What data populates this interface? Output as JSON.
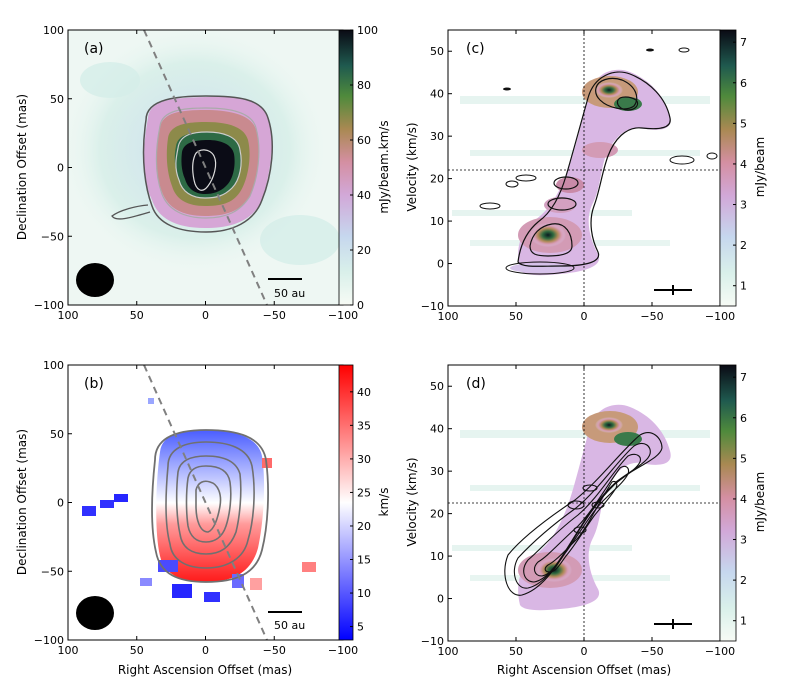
{
  "figure": {
    "caption_ra": "Right Ascension Offset (mas)",
    "caption_dec": "Declination Offset (mas)",
    "caption_vel": "Velocity (km/s)"
  },
  "colors": {
    "major_axis": "#808080",
    "contour_light": "#dddddd",
    "contour_dark": "#555555",
    "contour_black": "#111111",
    "beam": "#000000",
    "red": "#ff0000",
    "blue": "#0000ff"
  },
  "chart_data": [
    {
      "id": "a",
      "type": "heatmap",
      "panel_label": "(a)",
      "title": "",
      "xlabel": "",
      "ylabel": "Declination Offset (mas)",
      "xlim": [
        100,
        -100
      ],
      "ylim": [
        -100,
        100
      ],
      "xticks": [
        "100",
        "50",
        "0",
        "−50",
        "−100"
      ],
      "yticks": [
        "−100",
        "−50",
        "0",
        "50",
        "100"
      ],
      "colorbar": {
        "label": "mJy/beam.km/s",
        "range": [
          0,
          100
        ],
        "ticks": [
          "0",
          "20",
          "40",
          "60",
          "80",
          "100"
        ],
        "cmap": "cubehelix"
      },
      "scalebar": {
        "length_mas": 25,
        "label": "50 au"
      },
      "major_axis_line": {
        "from": [
          45,
          100
        ],
        "to": [
          -45,
          -100
        ]
      },
      "beam_center": [
        80,
        -80
      ],
      "peak_intensity_at": [
        3,
        -7
      ],
      "contour_levels_fraction": [
        0.12,
        0.35,
        0.6,
        0.85
      ]
    },
    {
      "id": "b",
      "type": "heatmap",
      "panel_label": "(b)",
      "title": "",
      "xlabel": "Right Ascension Offset (mas)",
      "ylabel": "Declination Offset (mas)",
      "xlim": [
        100,
        -100
      ],
      "ylim": [
        -100,
        100
      ],
      "xticks": [
        "100",
        "50",
        "0",
        "−50",
        "−100"
      ],
      "yticks": [
        "−100",
        "−50",
        "0",
        "50",
        "100"
      ],
      "colorbar": {
        "label": "km/s",
        "range": [
          3,
          44
        ],
        "ticks": [
          "5",
          "10",
          "15",
          "20",
          "25",
          "30",
          "35",
          "40"
        ],
        "cmap": "bwr"
      },
      "scalebar": {
        "length_mas": 25,
        "label": "50 au"
      },
      "major_axis_line": {
        "from": [
          45,
          100
        ],
        "to": [
          -45,
          -100
        ]
      },
      "beam_center": [
        80,
        -80
      ],
      "velocity_gradient": {
        "north_kms": 5,
        "south_kms": 42
      }
    },
    {
      "id": "c",
      "type": "heatmap",
      "panel_label": "(c)",
      "title": "",
      "xlabel": "",
      "ylabel": "Velocity (km/s)",
      "xlim": [
        100,
        -100
      ],
      "ylim": [
        -10,
        55
      ],
      "xticks": [
        "100",
        "50",
        "0",
        "−50",
        "−100"
      ],
      "yticks": [
        "−10",
        "0",
        "10",
        "20",
        "30",
        "40",
        "50"
      ],
      "colorbar": {
        "label": "mJy/beam",
        "range": [
          0.5,
          7.3
        ],
        "ticks": [
          "1",
          "2",
          "3",
          "4",
          "5",
          "6",
          "7"
        ],
        "cmap": "cubehelix"
      },
      "systemic_velocity_kms": 22,
      "reference_offset_mas": 0,
      "peaks": [
        {
          "x": 22,
          "y": 7,
          "value": 7.0
        },
        {
          "x": -17,
          "y": 41,
          "value": 6.9
        },
        {
          "x": -25,
          "y": 37,
          "value": 5.0
        },
        {
          "x": 10,
          "y": 18,
          "value": 3.0
        }
      ]
    },
    {
      "id": "d",
      "type": "heatmap",
      "panel_label": "(d)",
      "title": "",
      "xlabel": "Right Ascension Offset (mas)",
      "ylabel": "Velocity (km/s)",
      "xlim": [
        100,
        -100
      ],
      "ylim": [
        -10,
        55
      ],
      "xticks": [
        "100",
        "50",
        "0",
        "−50",
        "−100"
      ],
      "yticks": [
        "−10",
        "0",
        "10",
        "20",
        "30",
        "40",
        "50"
      ],
      "colorbar": {
        "label": "mJy/beam",
        "range": [
          0.5,
          7.3
        ],
        "ticks": [
          "1",
          "2",
          "3",
          "4",
          "5",
          "6",
          "7"
        ],
        "cmap": "cubehelix"
      },
      "systemic_velocity_kms": 22,
      "reference_offset_mas": 0,
      "peaks": [
        {
          "x": 22,
          "y": 7,
          "value": 6.5
        },
        {
          "x": -17,
          "y": 41,
          "value": 6.9
        },
        {
          "x": -25,
          "y": 37,
          "value": 5.0
        }
      ],
      "model_contours": "keplerian disk model"
    }
  ]
}
